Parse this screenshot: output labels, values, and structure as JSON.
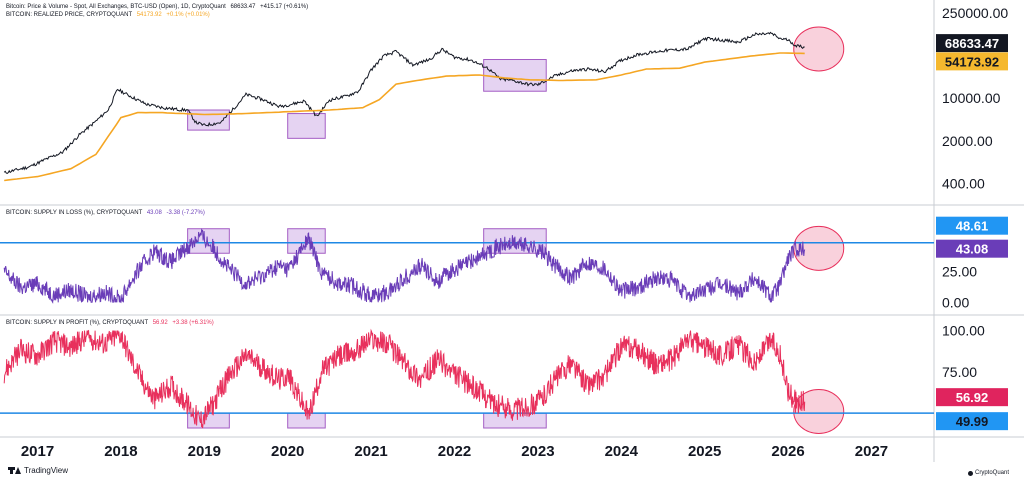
{
  "theme": {
    "price_color": "#131722",
    "realized_color": "#f5a623",
    "loss_color": "#6a3db8",
    "profit_color": "#e8305c",
    "threshold_color": "#1e88e5",
    "highlight_fill": "#dcc4ee",
    "highlight_stroke": "#a35cc4",
    "ellipse_fill": "#f7c5d3",
    "ellipse_stroke": "#e8305c",
    "label_black": "#131722",
    "label_orange": "#f5b82e",
    "label_blue": "#2196f3",
    "label_purple": "#6a3db8",
    "label_pink": "#e0245e"
  },
  "legends": {
    "price_title": "Bitcoin: Price & Volume - Spot, All Exchanges, BTC-USD (Open), 1D, CryptoQuant",
    "price_value": "68633.47",
    "price_change": "+415.17 (+0.61%)",
    "realized_title": "BITCOIN: REALIZED PRICE, CRYPTOQUANT",
    "realized_value": "54173.92",
    "realized_change": "+0.1% (+0.01%)",
    "loss_title": "BITCOIN: SUPPLY IN LOSS (%), CRYPTOQUANT",
    "loss_value": "43.08",
    "loss_change": "-3.38 (-7.27%)",
    "profit_title": "BITCOIN: SUPPLY IN PROFIT (%), CRYPTOQUANT",
    "profit_value": "56.92",
    "profit_change": "+3.38 (+6.31%)"
  },
  "branding": {
    "tradingview": "TradingView",
    "cryptoquant": "CryptoQuant"
  },
  "chart_data": [
    {
      "type": "line",
      "scale": "log",
      "series": [
        {
          "name": "Bitcoin: Price & Volume - Spot, All Exchanges, BTC-USD (Open), 1D, CryptoQuant",
          "x": [
            2016.6,
            2016.9,
            2017.1,
            2017.3,
            2017.5,
            2017.7,
            2017.85,
            2017.96,
            2018.1,
            2018.3,
            2018.5,
            2018.7,
            2018.8,
            2018.9,
            2019.0,
            2019.2,
            2019.4,
            2019.5,
            2019.7,
            2019.9,
            2020.05,
            2020.2,
            2020.35,
            2020.5,
            2020.7,
            2020.85,
            2021.0,
            2021.15,
            2021.3,
            2021.5,
            2021.7,
            2021.85,
            2022.0,
            2022.2,
            2022.4,
            2022.55,
            2022.7,
            2022.87,
            2023.0,
            2023.2,
            2023.4,
            2023.6,
            2023.8,
            2024.0,
            2024.2,
            2024.5,
            2024.8,
            2025.0,
            2025.2,
            2025.4,
            2025.6,
            2025.8,
            2025.9,
            2026.0,
            2026.1,
            2026.2
          ],
          "y": [
            600,
            750,
            1000,
            1300,
            2500,
            4200,
            6500,
            14000,
            11000,
            8000,
            7000,
            6500,
            6400,
            4000,
            3600,
            4000,
            8000,
            11500,
            9500,
            7300,
            8000,
            9000,
            5000,
            9300,
            10800,
            13000,
            29000,
            49000,
            58000,
            35000,
            43000,
            63000,
            47000,
            42000,
            31000,
            20500,
            19500,
            17000,
            16600,
            23000,
            28000,
            30000,
            27000,
            42000,
            52000,
            60000,
            64000,
            95000,
            90000,
            82000,
            110000,
            115000,
            95000,
            90000,
            72000,
            68633.47
          ]
        },
        {
          "name": "BITCOIN: REALIZED PRICE, CRYPTOQUANT",
          "x": [
            2016.6,
            2017.0,
            2017.4,
            2017.7,
            2017.9,
            2018.0,
            2018.2,
            2018.5,
            2019.0,
            2019.5,
            2020.0,
            2020.5,
            2020.9,
            2021.1,
            2021.3,
            2021.6,
            2021.9,
            2022.3,
            2022.6,
            2022.9,
            2023.3,
            2023.7,
            2024.0,
            2024.3,
            2024.7,
            2025.0,
            2025.5,
            2025.9,
            2026.2
          ],
          "y": [
            450,
            520,
            700,
            1200,
            3000,
            4800,
            5800,
            5800,
            5400,
            5600,
            6000,
            6400,
            7000,
            9500,
            17000,
            20000,
            23000,
            24000,
            21500,
            20000,
            19500,
            20000,
            24000,
            30000,
            31000,
            39000,
            48000,
            55000,
            54173.92
          ]
        }
      ],
      "yticks": [
        "400.00",
        "2000.00",
        "10000.00",
        "250000.00"
      ],
      "ylim": [
        250,
        300000
      ],
      "price_labels": [
        "68633.47",
        "54173.92"
      ]
    },
    {
      "type": "line",
      "series": [
        {
          "name": "BITCOIN: SUPPLY IN LOSS (%), CRYPTOQUANT",
          "x": [
            2016.6,
            2016.8,
            2017.0,
            2017.2,
            2017.4,
            2017.6,
            2017.8,
            2018.0,
            2018.1,
            2018.25,
            2018.4,
            2018.6,
            2018.8,
            2018.95,
            2019.1,
            2019.3,
            2019.5,
            2019.7,
            2019.9,
            2020.0,
            2020.1,
            2020.25,
            2020.4,
            2020.6,
            2020.8,
            2021.0,
            2021.2,
            2021.4,
            2021.6,
            2021.8,
            2021.95,
            2022.1,
            2022.3,
            2022.5,
            2022.7,
            2022.9,
            2023.05,
            2023.2,
            2023.4,
            2023.6,
            2023.8,
            2024.0,
            2024.2,
            2024.4,
            2024.6,
            2024.8,
            2025.0,
            2025.2,
            2025.4,
            2025.6,
            2025.8,
            2025.9,
            2026.0,
            2026.1,
            2026.2
          ],
          "y": [
            25,
            12,
            15,
            6,
            10,
            4,
            8,
            2,
            15,
            30,
            42,
            33,
            45,
            55,
            45,
            27,
            15,
            22,
            30,
            27,
            36,
            52,
            25,
            16,
            13,
            5,
            8,
            20,
            30,
            17,
            25,
            30,
            37,
            45,
            48,
            46,
            41,
            30,
            20,
            33,
            28,
            9,
            12,
            20,
            18,
            5,
            10,
            15,
            8,
            20,
            5,
            14,
            36,
            44,
            43.08
          ]
        }
      ],
      "threshold": 48.61,
      "yticks": [
        "0.00",
        "25.00"
      ],
      "ylim": [
        -3,
        72
      ],
      "price_labels": [
        "48.61",
        "43.08"
      ]
    },
    {
      "type": "line",
      "series": [
        {
          "name": "BITCOIN: SUPPLY IN PROFIT (%), CRYPTOQUANT",
          "x": [
            2016.6,
            2016.8,
            2017.0,
            2017.2,
            2017.4,
            2017.6,
            2017.8,
            2018.0,
            2018.1,
            2018.25,
            2018.4,
            2018.6,
            2018.8,
            2018.95,
            2019.1,
            2019.3,
            2019.5,
            2019.7,
            2019.9,
            2020.0,
            2020.1,
            2020.25,
            2020.4,
            2020.6,
            2020.8,
            2021.0,
            2021.2,
            2021.4,
            2021.6,
            2021.8,
            2021.95,
            2022.1,
            2022.3,
            2022.5,
            2022.7,
            2022.9,
            2023.05,
            2023.2,
            2023.4,
            2023.6,
            2023.8,
            2024.0,
            2024.2,
            2024.4,
            2024.6,
            2024.8,
            2025.0,
            2025.2,
            2025.4,
            2025.6,
            2025.8,
            2025.9,
            2026.0,
            2026.1,
            2026.2
          ],
          "y": [
            75,
            88,
            85,
            94,
            90,
            96,
            92,
            98,
            85,
            70,
            58,
            67,
            55,
            45,
            55,
            73,
            85,
            78,
            70,
            73,
            64,
            48,
            75,
            84,
            87,
            95,
            92,
            80,
            70,
            83,
            75,
            70,
            63,
            55,
            52,
            54,
            59,
            70,
            80,
            67,
            72,
            91,
            88,
            80,
            82,
            95,
            90,
            85,
            92,
            80,
            95,
            86,
            64,
            56,
            56.92
          ]
        }
      ],
      "threshold": 49.99,
      "yticks": [
        "75.00",
        "100.00"
      ],
      "ylim": [
        41,
        104
      ],
      "price_labels": [
        "56.92",
        "49.99"
      ]
    }
  ],
  "xaxis": {
    "ticks": [
      "2017",
      "2018",
      "2019",
      "2020",
      "2021",
      "2022",
      "2023",
      "2024",
      "2025",
      "2026",
      "2027"
    ]
  },
  "highlights": [
    {
      "panel": 0,
      "x0": 2018.8,
      "x1": 2019.3,
      "y0": 3000,
      "y1": 6400
    },
    {
      "panel": 0,
      "x0": 2020.0,
      "x1": 2020.45,
      "y0": 2200,
      "y1": 5600
    },
    {
      "panel": 0,
      "x0": 2022.35,
      "x1": 2023.1,
      "y0": 13000,
      "y1": 43000
    },
    {
      "panel": 1,
      "x0": 2018.8,
      "x1": 2019.3,
      "y0": 40,
      "y1": 60
    },
    {
      "panel": 1,
      "x0": 2020.0,
      "x1": 2020.45,
      "y0": 40,
      "y1": 60
    },
    {
      "panel": 1,
      "x0": 2022.35,
      "x1": 2023.1,
      "y0": 40,
      "y1": 60
    },
    {
      "panel": 2,
      "x0": 2018.8,
      "x1": 2019.3,
      "y0": 41,
      "y1": 50
    },
    {
      "panel": 2,
      "x0": 2020.0,
      "x1": 2020.45,
      "y0": 41,
      "y1": 50
    },
    {
      "panel": 2,
      "x0": 2022.35,
      "x1": 2023.1,
      "y0": 41,
      "y1": 50
    }
  ],
  "ellipses": [
    {
      "panel": 0,
      "x": 2026.2,
      "y": 64000
    },
    {
      "panel": 1,
      "x": 2026.2,
      "y": 44
    },
    {
      "panel": 2,
      "x": 2026.2,
      "y": 51
    }
  ]
}
